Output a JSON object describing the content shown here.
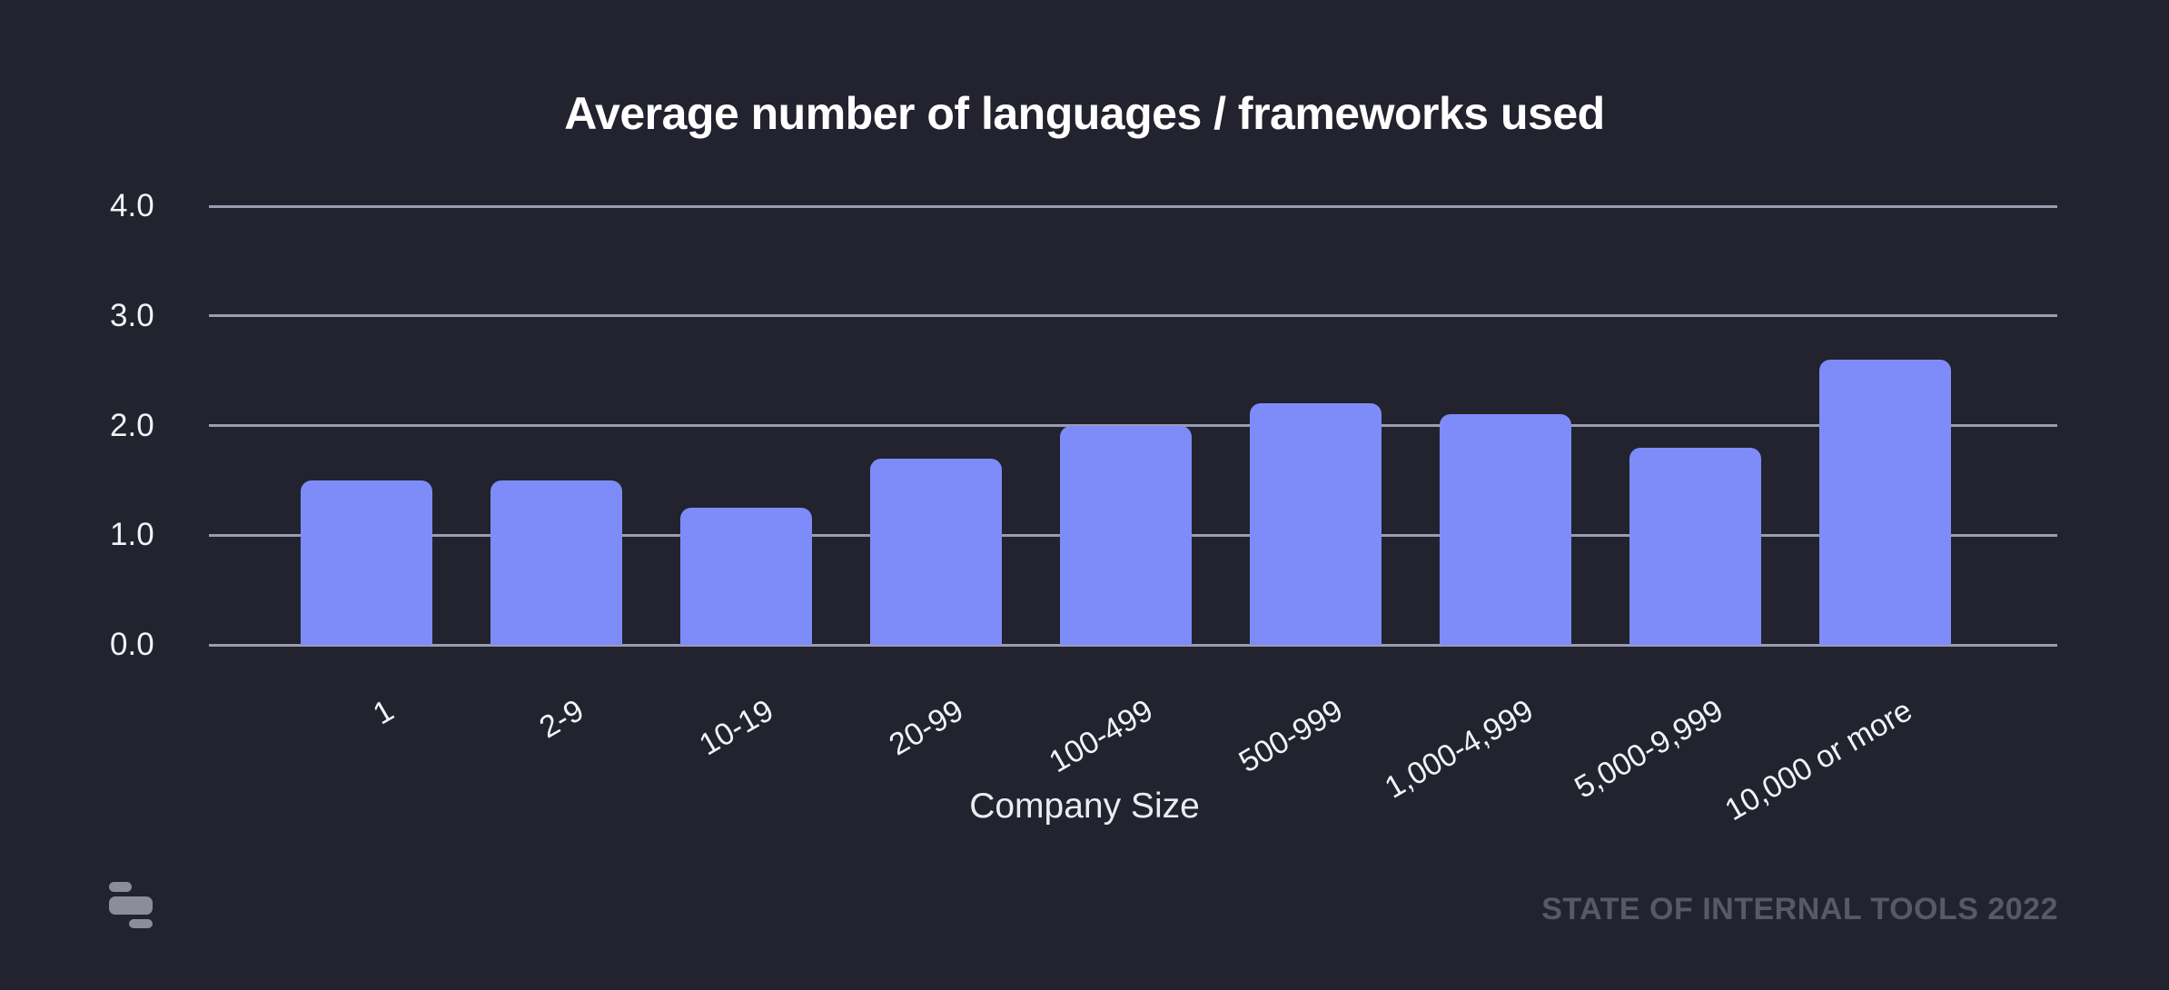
{
  "chart_data": {
    "type": "bar",
    "title": "Average number of languages / frameworks used",
    "xlabel": "Company Size",
    "ylabel": "",
    "categories": [
      "1",
      "2-9",
      "10-19",
      "20-99",
      "100-499",
      "500-999",
      "1,000-4,999",
      "5,000-9,999",
      "10,000 or more"
    ],
    "values": [
      1.5,
      1.5,
      1.25,
      1.7,
      2.0,
      2.2,
      2.1,
      1.8,
      2.6
    ],
    "ylim": [
      0,
      4
    ],
    "y_ticks": [
      0,
      1,
      2,
      3,
      4
    ],
    "y_tick_labels": [
      "0.0",
      "1.0",
      "2.0",
      "3.0",
      "4.0"
    ],
    "grid": "horizontal",
    "legend": "none",
    "x_tick_rotation_deg": -30,
    "bar_color": "#7E8CF9",
    "background_color": "#22232E",
    "gridline_color": "#9A9DB1",
    "axis_text_color": "#F2F3F6",
    "title_color": "#FFFFFF"
  },
  "footer": {
    "credit": "STATE OF INTERNAL TOOLS 2022",
    "logo": "retool-logomark"
  }
}
